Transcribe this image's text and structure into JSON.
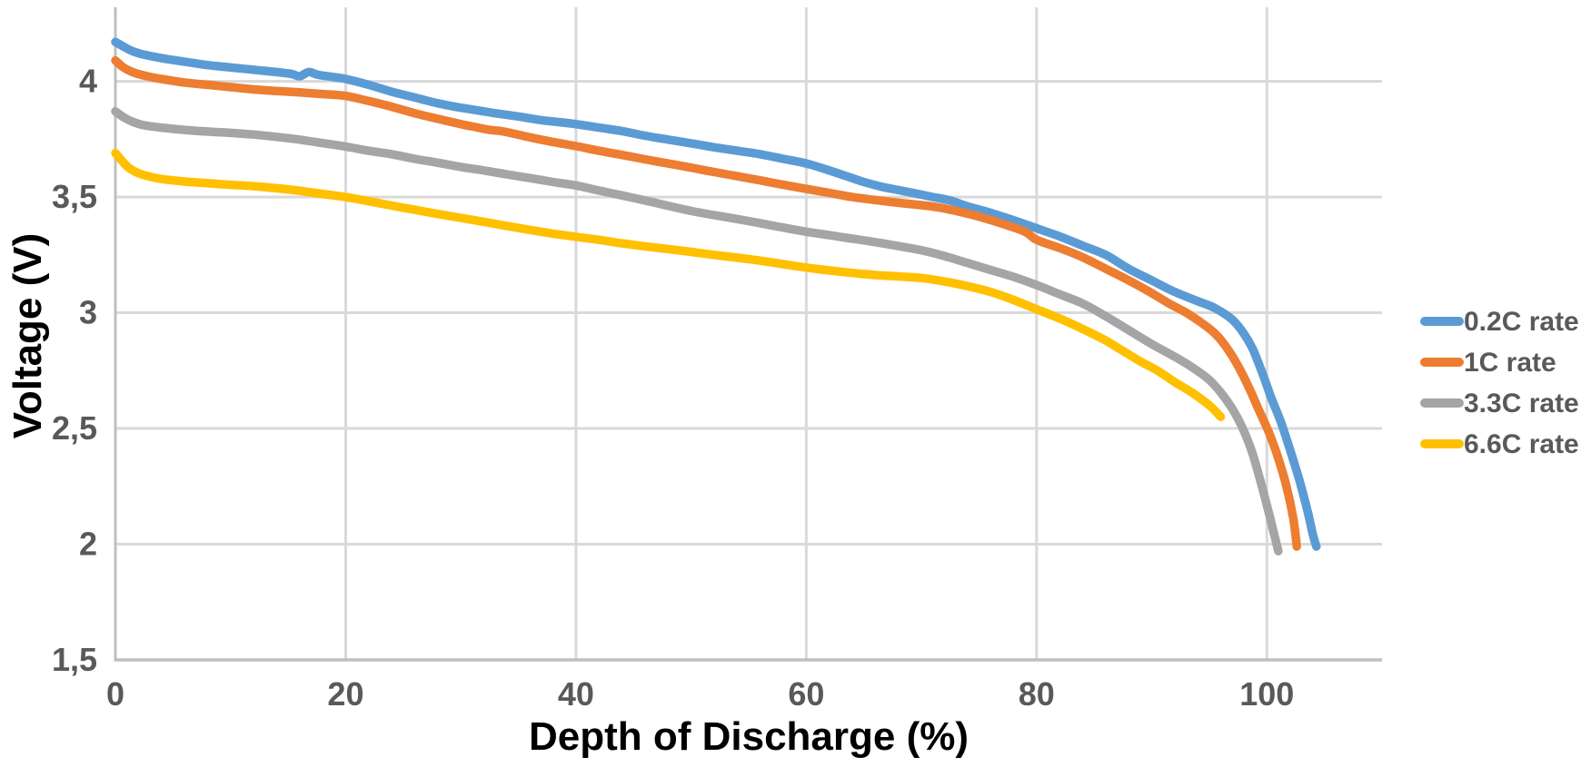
{
  "chart_data": {
    "type": "line",
    "title": "",
    "xlabel": "Depth of Discharge (%)",
    "ylabel": "Voltage (V)",
    "xlim": [
      0,
      110
    ],
    "ylim": [
      1.5,
      4.32
    ],
    "x_ticks": [
      0,
      20,
      40,
      60,
      80,
      100
    ],
    "x_tick_labels": [
      "0",
      "20",
      "40",
      "60",
      "80",
      "100"
    ],
    "y_ticks": [
      1.5,
      2,
      2.5,
      3,
      3.5,
      4
    ],
    "y_tick_labels": [
      "1,5",
      "2",
      "2,5",
      "3",
      "3,5",
      "4"
    ],
    "grid": true,
    "legend_position": "right",
    "series": [
      {
        "name": "0.2C rate",
        "color": "#5B9BD5",
        "points": [
          [
            0,
            4.17
          ],
          [
            0.7,
            4.15
          ],
          [
            1.5,
            4.13
          ],
          [
            2.5,
            4.115
          ],
          [
            4,
            4.1
          ],
          [
            6,
            4.085
          ],
          [
            8,
            4.07
          ],
          [
            10,
            4.06
          ],
          [
            12,
            4.05
          ],
          [
            14,
            4.04
          ],
          [
            15.3,
            4.032
          ],
          [
            16,
            4.022
          ],
          [
            16.8,
            4.04
          ],
          [
            17.6,
            4.028
          ],
          [
            19,
            4.018
          ],
          [
            20,
            4.01
          ],
          [
            22,
            3.985
          ],
          [
            24,
            3.955
          ],
          [
            26,
            3.93
          ],
          [
            28,
            3.905
          ],
          [
            29.5,
            3.89
          ],
          [
            31,
            3.878
          ],
          [
            33,
            3.862
          ],
          [
            35,
            3.848
          ],
          [
            37,
            3.832
          ],
          [
            38.5,
            3.824
          ],
          [
            40,
            3.815
          ],
          [
            42,
            3.8
          ],
          [
            44,
            3.785
          ],
          [
            46,
            3.765
          ],
          [
            48,
            3.748
          ],
          [
            50,
            3.732
          ],
          [
            52,
            3.715
          ],
          [
            54,
            3.7
          ],
          [
            56,
            3.685
          ],
          [
            58,
            3.665
          ],
          [
            60,
            3.645
          ],
          [
            62,
            3.615
          ],
          [
            63.5,
            3.59
          ],
          [
            65,
            3.565
          ],
          [
            66.5,
            3.545
          ],
          [
            68,
            3.53
          ],
          [
            69.5,
            3.515
          ],
          [
            71,
            3.5
          ],
          [
            72.5,
            3.485
          ],
          [
            74,
            3.46
          ],
          [
            76,
            3.432
          ],
          [
            78,
            3.4
          ],
          [
            80,
            3.365
          ],
          [
            82,
            3.33
          ],
          [
            84,
            3.29
          ],
          [
            86,
            3.25
          ],
          [
            88,
            3.19
          ],
          [
            90,
            3.14
          ],
          [
            92,
            3.09
          ],
          [
            94,
            3.05
          ],
          [
            95.5,
            3.02
          ],
          [
            97,
            2.97
          ],
          [
            98,
            2.91
          ],
          [
            98.8,
            2.84
          ],
          [
            99.6,
            2.74
          ],
          [
            100.4,
            2.63
          ],
          [
            101.2,
            2.53
          ],
          [
            102,
            2.41
          ],
          [
            102.8,
            2.28
          ],
          [
            103.5,
            2.15
          ],
          [
            104,
            2.04
          ],
          [
            104.3,
            1.99
          ]
        ]
      },
      {
        "name": "1C rate",
        "color": "#ED7D31",
        "points": [
          [
            0,
            4.09
          ],
          [
            0.7,
            4.06
          ],
          [
            1.5,
            4.04
          ],
          [
            2.5,
            4.025
          ],
          [
            4,
            4.01
          ],
          [
            6,
            3.995
          ],
          [
            8,
            3.985
          ],
          [
            10,
            3.975
          ],
          [
            12,
            3.965
          ],
          [
            14,
            3.958
          ],
          [
            16,
            3.952
          ],
          [
            18,
            3.945
          ],
          [
            20,
            3.937
          ],
          [
            22,
            3.915
          ],
          [
            24,
            3.89
          ],
          [
            26,
            3.862
          ],
          [
            28,
            3.838
          ],
          [
            30,
            3.815
          ],
          [
            31.5,
            3.8
          ],
          [
            32.5,
            3.79
          ],
          [
            33.5,
            3.785
          ],
          [
            34.5,
            3.775
          ],
          [
            36,
            3.758
          ],
          [
            38,
            3.738
          ],
          [
            40,
            3.72
          ],
          [
            42,
            3.7
          ],
          [
            44,
            3.682
          ],
          [
            46,
            3.663
          ],
          [
            48,
            3.645
          ],
          [
            50,
            3.627
          ],
          [
            52,
            3.608
          ],
          [
            54,
            3.59
          ],
          [
            56,
            3.572
          ],
          [
            58,
            3.553
          ],
          [
            60,
            3.535
          ],
          [
            62,
            3.518
          ],
          [
            64,
            3.5
          ],
          [
            66,
            3.487
          ],
          [
            68,
            3.475
          ],
          [
            70,
            3.465
          ],
          [
            71.5,
            3.455
          ],
          [
            73,
            3.44
          ],
          [
            75,
            3.415
          ],
          [
            77,
            3.385
          ],
          [
            79,
            3.35
          ],
          [
            80,
            3.315
          ],
          [
            82,
            3.28
          ],
          [
            84,
            3.24
          ],
          [
            86,
            3.19
          ],
          [
            88,
            3.14
          ],
          [
            90,
            3.085
          ],
          [
            91.5,
            3.04
          ],
          [
            93,
            3.0
          ],
          [
            94.5,
            2.95
          ],
          [
            95.5,
            2.91
          ],
          [
            96.5,
            2.85
          ],
          [
            97.5,
            2.77
          ],
          [
            98.5,
            2.67
          ],
          [
            99.3,
            2.58
          ],
          [
            100.2,
            2.48
          ],
          [
            101,
            2.37
          ],
          [
            101.7,
            2.25
          ],
          [
            102.3,
            2.11
          ],
          [
            102.6,
            1.99
          ]
        ]
      },
      {
        "name": "3.3C rate",
        "color": "#A5A5A5",
        "points": [
          [
            0,
            3.87
          ],
          [
            0.7,
            3.845
          ],
          [
            1.5,
            3.825
          ],
          [
            2.5,
            3.81
          ],
          [
            4,
            3.8
          ],
          [
            6,
            3.79
          ],
          [
            8,
            3.783
          ],
          [
            10,
            3.777
          ],
          [
            12,
            3.77
          ],
          [
            14,
            3.76
          ],
          [
            16,
            3.748
          ],
          [
            18,
            3.733
          ],
          [
            20,
            3.718
          ],
          [
            22,
            3.7
          ],
          [
            24,
            3.685
          ],
          [
            26,
            3.665
          ],
          [
            28,
            3.648
          ],
          [
            30,
            3.63
          ],
          [
            32,
            3.615
          ],
          [
            34,
            3.598
          ],
          [
            36,
            3.582
          ],
          [
            38,
            3.565
          ],
          [
            40,
            3.55
          ],
          [
            42,
            3.528
          ],
          [
            44,
            3.507
          ],
          [
            46,
            3.485
          ],
          [
            48,
            3.462
          ],
          [
            50,
            3.44
          ],
          [
            52,
            3.422
          ],
          [
            54,
            3.405
          ],
          [
            56,
            3.387
          ],
          [
            58,
            3.368
          ],
          [
            60,
            3.35
          ],
          [
            62,
            3.335
          ],
          [
            64,
            3.32
          ],
          [
            66,
            3.305
          ],
          [
            68,
            3.288
          ],
          [
            70,
            3.27
          ],
          [
            72,
            3.245
          ],
          [
            74,
            3.215
          ],
          [
            76,
            3.185
          ],
          [
            78,
            3.155
          ],
          [
            80,
            3.12
          ],
          [
            82,
            3.08
          ],
          [
            84,
            3.04
          ],
          [
            86,
            2.985
          ],
          [
            88,
            2.925
          ],
          [
            90,
            2.865
          ],
          [
            92,
            2.81
          ],
          [
            93.5,
            2.765
          ],
          [
            95,
            2.71
          ],
          [
            96,
            2.655
          ],
          [
            97,
            2.585
          ],
          [
            97.9,
            2.5
          ],
          [
            98.7,
            2.4
          ],
          [
            99.4,
            2.28
          ],
          [
            100.1,
            2.15
          ],
          [
            100.7,
            2.03
          ],
          [
            101,
            1.97
          ]
        ]
      },
      {
        "name": "6.6C rate",
        "color": "#FFC000",
        "points": [
          [
            0,
            3.69
          ],
          [
            0.6,
            3.655
          ],
          [
            1.2,
            3.625
          ],
          [
            2,
            3.603
          ],
          [
            3,
            3.588
          ],
          [
            4,
            3.578
          ],
          [
            6,
            3.567
          ],
          [
            8,
            3.56
          ],
          [
            10,
            3.553
          ],
          [
            12,
            3.547
          ],
          [
            14,
            3.538
          ],
          [
            15.5,
            3.53
          ],
          [
            17,
            3.52
          ],
          [
            18.5,
            3.51
          ],
          [
            20,
            3.5
          ],
          [
            22,
            3.482
          ],
          [
            24,
            3.463
          ],
          [
            26,
            3.445
          ],
          [
            28,
            3.427
          ],
          [
            30,
            3.41
          ],
          [
            32,
            3.393
          ],
          [
            34,
            3.375
          ],
          [
            36,
            3.358
          ],
          [
            38,
            3.342
          ],
          [
            40,
            3.328
          ],
          [
            42,
            3.315
          ],
          [
            44,
            3.3
          ],
          [
            46,
            3.287
          ],
          [
            48,
            3.275
          ],
          [
            50,
            3.263
          ],
          [
            52,
            3.25
          ],
          [
            54,
            3.238
          ],
          [
            56,
            3.225
          ],
          [
            58,
            3.21
          ],
          [
            60,
            3.195
          ],
          [
            62,
            3.183
          ],
          [
            64,
            3.172
          ],
          [
            66,
            3.163
          ],
          [
            68,
            3.157
          ],
          [
            70,
            3.15
          ],
          [
            72,
            3.135
          ],
          [
            74,
            3.115
          ],
          [
            76,
            3.09
          ],
          [
            78,
            3.055
          ],
          [
            80,
            3.015
          ],
          [
            82,
            2.975
          ],
          [
            84,
            2.93
          ],
          [
            86,
            2.88
          ],
          [
            87.5,
            2.835
          ],
          [
            89,
            2.79
          ],
          [
            90.5,
            2.75
          ],
          [
            92,
            2.7
          ],
          [
            93.5,
            2.655
          ],
          [
            95,
            2.6
          ],
          [
            96,
            2.55
          ]
        ]
      }
    ],
    "style": {
      "text_color": "#595959",
      "grid_color": "#D9D9D9",
      "axis_color": "#BFBFBF",
      "line_width": 9.5
    }
  }
}
